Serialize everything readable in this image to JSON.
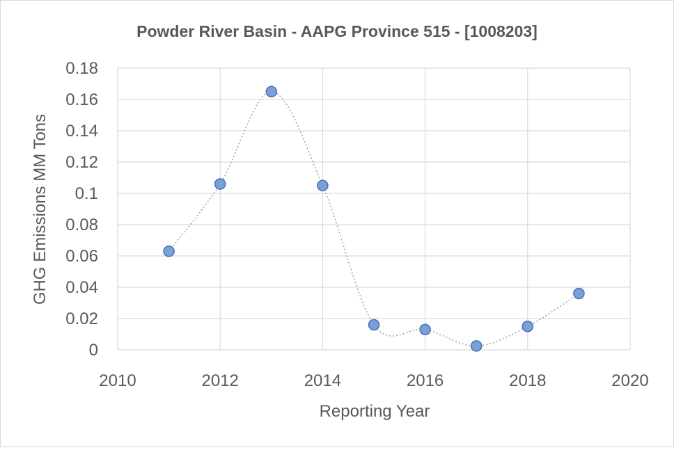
{
  "chart_data": {
    "type": "scatter",
    "title": "Powder River Basin - AAPG Province 515 - [1008203]",
    "xlabel": "Reporting Year",
    "ylabel": "GHG Emissions MM Tons",
    "xlim": [
      2010,
      2020
    ],
    "ylim": [
      0,
      0.18
    ],
    "xticks": [
      "2010",
      "2012",
      "2014",
      "2016",
      "2018",
      "2020"
    ],
    "yticks": [
      "0",
      "0.02",
      "0.04",
      "0.06",
      "0.08",
      "0.1",
      "0.12",
      "0.14",
      "0.16",
      "0.18"
    ],
    "grid": true,
    "legend": "none",
    "smooth_line": true,
    "marker_color": "#7b9fd9",
    "marker_edge_color": "#4a72b8",
    "line_color": "#a6a6a6",
    "series": [
      {
        "x": [
          2011,
          2012,
          2013,
          2014,
          2015,
          2016,
          2017,
          2018,
          2019
        ],
        "y": [
          0.063,
          0.106,
          0.165,
          0.105,
          0.016,
          0.013,
          0.0025,
          0.015,
          0.036
        ]
      }
    ]
  }
}
